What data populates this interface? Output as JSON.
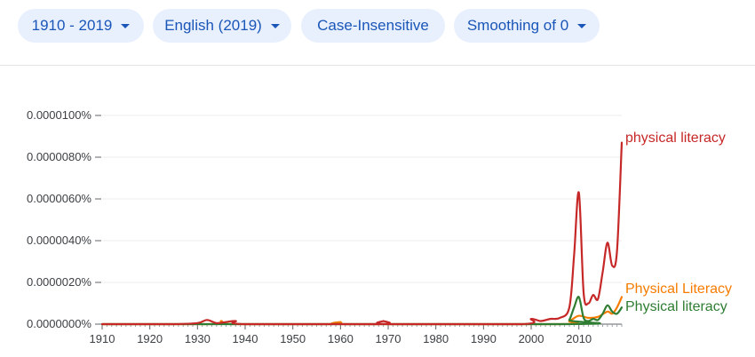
{
  "toolbar": {
    "year_range": "1910 - 2019",
    "corpus": "English (2019)",
    "case": "Case-Insensitive",
    "smoothing": "Smoothing of 0"
  },
  "chart_data": {
    "type": "line",
    "title": "",
    "xlabel": "",
    "ylabel": "",
    "xlim": [
      1910,
      2019
    ],
    "ylim": [
      0,
      1e-07
    ],
    "x_ticks": [
      1910,
      1920,
      1930,
      1940,
      1950,
      1960,
      1970,
      1980,
      1990,
      2000,
      2010
    ],
    "x_tick_labels": [
      "1910",
      "1920",
      "1930",
      "1940",
      "1950",
      "1960",
      "1970",
      "1980",
      "1990",
      "2000",
      "2010"
    ],
    "y_ticks": [
      0,
      2e-08,
      4e-08,
      6e-08,
      8e-08,
      1e-07
    ],
    "y_tick_labels": [
      "0.0000000%",
      "0.0000020%",
      "0.0000040%",
      "0.0000060%",
      "0.0000080%",
      "0.0000100%"
    ],
    "grid": true,
    "legend": "inline-right",
    "series": [
      {
        "name": "physical literacy",
        "color": "#c62828",
        "points": [
          [
            1910,
            0
          ],
          [
            1925,
            0
          ],
          [
            1930,
            5e-10
          ],
          [
            1932,
            2e-09
          ],
          [
            1934,
            5e-10
          ],
          [
            1936,
            1e-09
          ],
          [
            1938,
            1.5e-09
          ],
          [
            1940,
            0
          ],
          [
            1968,
            0
          ],
          [
            1969,
            1.5e-09
          ],
          [
            1970,
            0
          ],
          [
            1998,
            0
          ],
          [
            2000,
            2.5e-09
          ],
          [
            2002,
            1.5e-09
          ],
          [
            2004,
            2.5e-09
          ],
          [
            2006,
            3e-09
          ],
          [
            2008,
            8e-09
          ],
          [
            2009,
            3.3e-08
          ],
          [
            2010,
            6.3e-08
          ],
          [
            2011,
            1.5e-08
          ],
          [
            2012,
            1e-08
          ],
          [
            2013,
            1.4e-08
          ],
          [
            2014,
            1.2e-08
          ],
          [
            2015,
            2.5e-08
          ],
          [
            2016,
            3.9e-08
          ],
          [
            2017,
            2.8e-08
          ],
          [
            2018,
            3.5e-08
          ],
          [
            2019,
            8.7e-08
          ]
        ]
      },
      {
        "name": "Physical Literacy",
        "color": "#f57c00",
        "points": [
          [
            1910,
            0
          ],
          [
            1933,
            0
          ],
          [
            1935,
            1.5e-09
          ],
          [
            1937,
            0
          ],
          [
            1958,
            0
          ],
          [
            1960,
            1e-09
          ],
          [
            1962,
            0
          ],
          [
            2006,
            0
          ],
          [
            2008,
            1.5e-09
          ],
          [
            2010,
            4e-09
          ],
          [
            2012,
            3e-09
          ],
          [
            2014,
            3.5e-09
          ],
          [
            2016,
            6e-09
          ],
          [
            2017,
            5e-09
          ],
          [
            2018,
            8e-09
          ],
          [
            2019,
            1.3e-08
          ]
        ]
      },
      {
        "name": "Physical literacy",
        "color": "#2e7d32",
        "points": [
          [
            1910,
            0
          ],
          [
            2007,
            0
          ],
          [
            2008,
            2e-09
          ],
          [
            2009,
            8e-09
          ],
          [
            2010,
            1.3e-08
          ],
          [
            2011,
            3e-09
          ],
          [
            2012,
            1.5e-09
          ],
          [
            2013,
            2.5e-09
          ],
          [
            2014,
            2e-09
          ],
          [
            2015,
            5e-09
          ],
          [
            2016,
            9e-09
          ],
          [
            2017,
            6e-09
          ],
          [
            2018,
            5e-09
          ],
          [
            2019,
            8e-09
          ]
        ]
      }
    ]
  }
}
